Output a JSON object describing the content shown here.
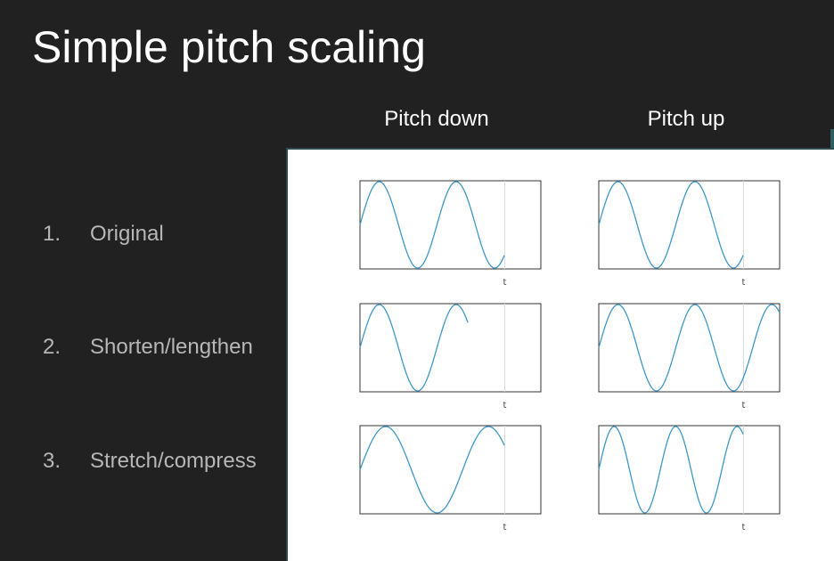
{
  "title": "Simple pitch scaling",
  "columns": [
    "Pitch down",
    "Pitch up"
  ],
  "list": [
    {
      "num": "1.",
      "label": "Original"
    },
    {
      "num": "2.",
      "label": "Shorten/lengthen"
    },
    {
      "num": "3.",
      "label": "Stretch/compress"
    }
  ],
  "colors": {
    "wave": "#3f97c8",
    "background": "#212121",
    "panel": "#ffffff"
  },
  "chart_data": {
    "type": "line",
    "xlabel": "t",
    "grid": false,
    "plots": [
      {
        "row": 1,
        "column": "Pitch down",
        "cycles_per_window": 2.35,
        "duration_fraction": 0.8
      },
      {
        "row": 1,
        "column": "Pitch up",
        "cycles_per_window": 2.35,
        "duration_fraction": 0.8
      },
      {
        "row": 2,
        "column": "Pitch down",
        "cycles_per_window": 2.35,
        "duration_fraction": 0.6
      },
      {
        "row": 2,
        "column": "Pitch up",
        "cycles_per_window": 2.35,
        "duration_fraction": 1.0
      },
      {
        "row": 3,
        "column": "Pitch down",
        "cycles_per_window": 1.76,
        "duration_fraction": 0.8
      },
      {
        "row": 3,
        "column": "Pitch up",
        "cycles_per_window": 2.94,
        "duration_fraction": 0.8
      }
    ]
  }
}
